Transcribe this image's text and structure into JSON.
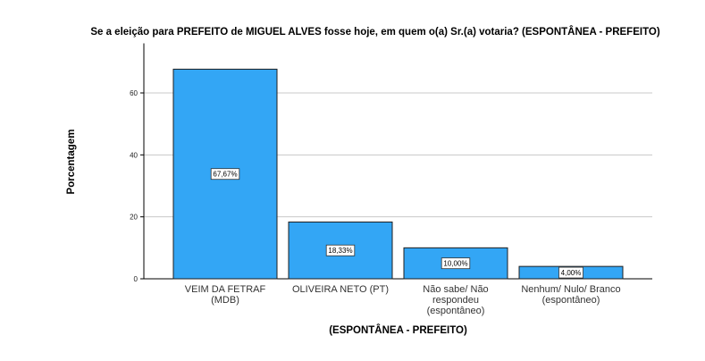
{
  "chart_data": {
    "type": "bar",
    "title": "Se a eleição para PREFEITO de MIGUEL ALVES fosse hoje, em quem o(a) Sr.(a) votaria? (ESPONTÂNEA - PREFEITO)",
    "xlabel": "(ESPONTÂNEA - PREFEITO)",
    "ylabel": "Porcentagem",
    "categories": [
      [
        "VEIM DA FETRAF",
        "(MDB)"
      ],
      [
        "OLIVEIRA NETO (PT)"
      ],
      [
        "Não sabe/ Não",
        "respondeu",
        "(espontâneo)"
      ],
      [
        "Nenhum/ Nulo/ Branco",
        "(espontâneo)"
      ]
    ],
    "values": [
      67.67,
      18.33,
      10.0,
      4.0
    ],
    "data_labels": [
      "67,67%",
      "18,33%",
      "10,00%",
      "4,00%"
    ],
    "yticks": [
      0,
      20,
      40,
      60
    ],
    "ylim": [
      0,
      76
    ],
    "grid": true,
    "colors": {
      "bar": "#33a6f5",
      "bar_edge": "#1f1f1f",
      "grid": "#c8c8c8"
    }
  }
}
